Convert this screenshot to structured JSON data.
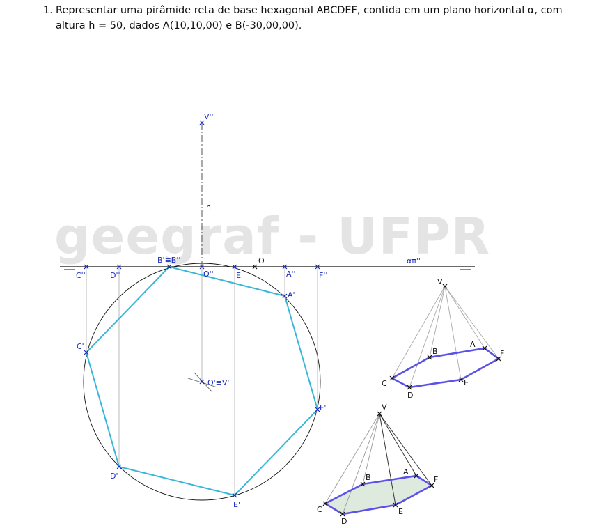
{
  "problem": {
    "number": "1.",
    "line1": "Representar uma pirâmide reta de base hexagonal ABCDEF, contida em um plano horizontal α, com",
    "line2": "altura h = 50, dados A(10,10,00) e B(-30,00,00)."
  },
  "watermark": "geegraf - UFPR",
  "colors": {
    "hexagon": "#3ab6d8",
    "points": "#1c2bbd",
    "perspective_edges": "#5a52e6",
    "base_fill": "#dfeadf",
    "construction": "#aaaaaa"
  },
  "labels": {
    "front_line_trace": "απ''",
    "origin": "O",
    "height": "h",
    "apex_front": "V''",
    "front_projections": [
      "C''",
      "D''",
      "B'≡B''",
      "O''",
      "E''",
      "A''",
      "F''"
    ],
    "top_projections": [
      "A'",
      "C'",
      "D'",
      "E'",
      "F'",
      "O'≡V'"
    ],
    "perspective_top": [
      "V",
      "A",
      "B",
      "C",
      "D",
      "E",
      "F"
    ],
    "perspective_bottom": [
      "V",
      "A",
      "B",
      "C",
      "D",
      "E",
      "F"
    ]
  }
}
